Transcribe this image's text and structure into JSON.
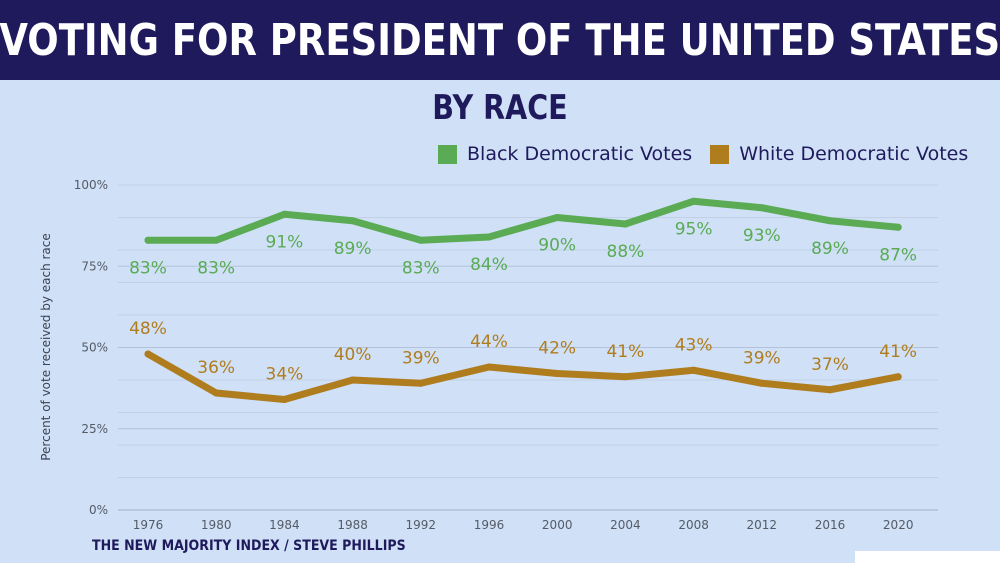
{
  "header": {
    "title": "VOTING FOR PRESIDENT OF THE UNITED STATES",
    "subtitle": "BY RACE"
  },
  "footer": {
    "source": "THE NEW MAJORITY INDEX / STEVE PHILLIPS"
  },
  "colors": {
    "title_bg": "#1f1a5c",
    "background": "#cfe0f7",
    "black_series": "#5aab54",
    "white_series": "#b07d1e",
    "grid": "#c2cfe4",
    "title_text": "#1f1a5c"
  },
  "chart_data": {
    "type": "line",
    "title": "VOTING FOR PRESIDENT OF THE UNITED STATES",
    "subtitle": "BY RACE",
    "xlabel": "",
    "ylabel": "Percent of vote received by each race",
    "ylim": [
      0,
      100
    ],
    "y_ticks": [
      "0%",
      "25%",
      "50%",
      "75%",
      "100%"
    ],
    "grid": true,
    "legend_position": "top-right",
    "x": [
      "1976",
      "1980",
      "1984",
      "1988",
      "1992",
      "1996",
      "2000",
      "2004",
      "2008",
      "2012",
      "2016",
      "2020"
    ],
    "series": [
      {
        "name": "Black Democratic Votes",
        "values": [
          83,
          83,
          91,
          89,
          83,
          84,
          90,
          88,
          95,
          93,
          89,
          87
        ],
        "labels": [
          "83%",
          "83%",
          "91%",
          "89%",
          "83%",
          "84%",
          "90%",
          "88%",
          "95%",
          "93%",
          "89%",
          "87%"
        ],
        "color": "#5aab54"
      },
      {
        "name": "White Democratic Votes",
        "values": [
          48,
          36,
          34,
          40,
          39,
          44,
          42,
          41,
          43,
          39,
          37,
          41
        ],
        "labels": [
          "48%",
          "36%",
          "34%",
          "40%",
          "39%",
          "44%",
          "42%",
          "41%",
          "43%",
          "39%",
          "37%",
          "41%"
        ],
        "color": "#b07d1e"
      }
    ]
  }
}
